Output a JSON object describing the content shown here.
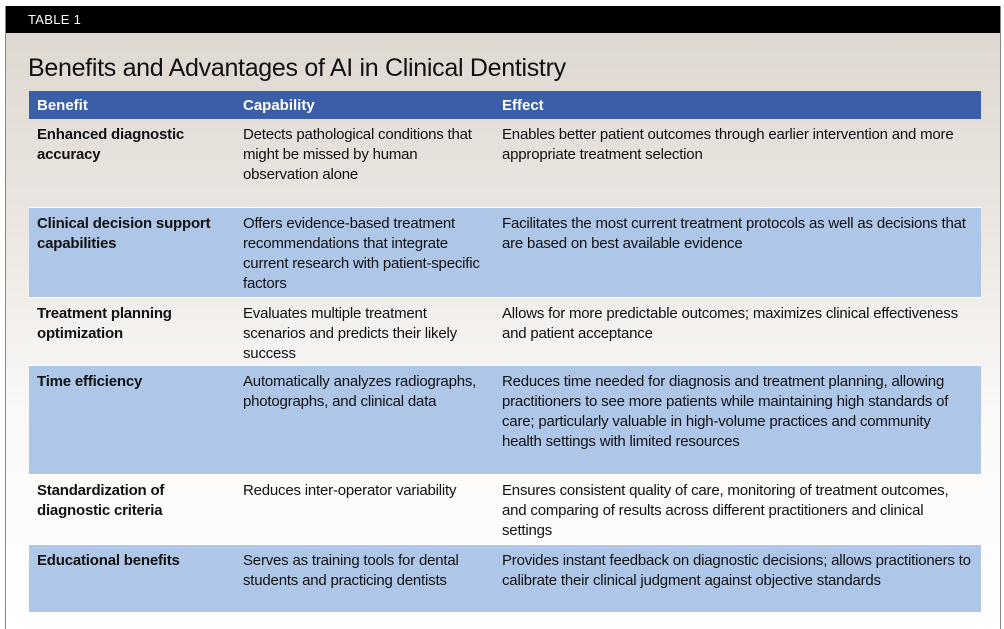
{
  "label": "TABLE 1",
  "title": "Benefits and Advantages of AI in Clinical Dentistry",
  "headers": [
    "Benefit",
    "Capability",
    "Effect"
  ],
  "rows": [
    {
      "benefit": "Enhanced diagnostic accuracy",
      "capability": "Detects pathological conditions that might be missed by human observation alone",
      "effect": "Enables better patient outcomes through earlier intervention and more appropriate treatment selection"
    },
    {
      "benefit": "Clinical decision support capabilities",
      "capability": "Offers evidence-based treatment recommendations that integrate current research with patient-specific factors",
      "effect": "Facilitates the most current treatment protocols as well as decisions that are based on best available evidence"
    },
    {
      "benefit": "Treatment planning optimization",
      "capability": "Evaluates multiple treatment scenarios and predicts their likely success",
      "effect": "Allows for more predictable outcomes; maximizes clinical effectiveness and patient acceptance"
    },
    {
      "benefit": "Time efficiency",
      "capability": "Automatically analyzes radiographs, photographs, and clinical data",
      "effect": "Reduces time needed for diagnosis and treatment planning, allowing practitioners to see more patients while maintaining high standards of care; particularly valuable in high-volume practices and community health settings with limited resources"
    },
    {
      "benefit": "Standardization of diagnostic criteria",
      "capability": "Reduces inter-operator variability",
      "effect": "Ensures consistent quality of care, monitoring of treatment outcomes, and comparing of results across different practitioners and clinical settings"
    },
    {
      "benefit": "Educational benefits",
      "capability": "Serves as training tools for dental students and practicing dentists",
      "effect": "Provides instant feedback on diagnostic decisions; allows practitioners to calibrate their clinical judgment against objective standards"
    }
  ]
}
